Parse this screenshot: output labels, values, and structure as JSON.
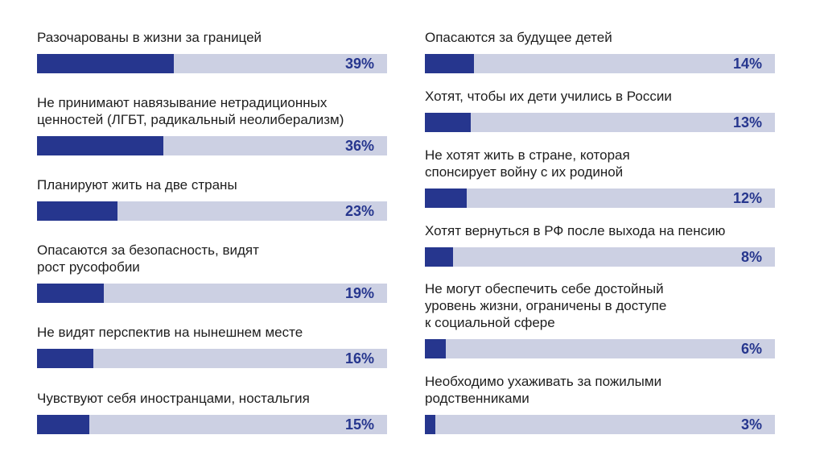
{
  "chart_data": {
    "type": "bar",
    "unit": "%",
    "xlim": [
      0,
      100
    ],
    "colors": {
      "fill": "#26368e",
      "track": "#ccd0e3",
      "value_text": "#26368e",
      "label_text": "#1e1e1e"
    },
    "categories": [
      "Разочарованы в жизни за границей",
      "Не принимают навязывание нетрадиционных\nценностей (ЛГБТ, радикальный неолиберализм)",
      "Планируют жить на две страны",
      "Опасаются за безопасность, видят\nрост русофобии",
      "Не видят перспектив на нынешнем месте",
      "Чувствуют себя иностранцами, ностальгия",
      "Опасаются за будущее детей",
      "Хотят, чтобы их дети учились в России",
      "Не хотят жить в стране, которая\nспонсирует войну с их родиной",
      "Хотят вернуться в РФ после выхода на пенсию",
      "Не могут обеспечить себе достойный\nуровень жизни, ограничены в доступе\nк социальной сфере",
      "Необходимо ухаживать за пожилыми\nродственниками"
    ],
    "values": [
      39,
      36,
      23,
      19,
      16,
      15,
      14,
      13,
      12,
      8,
      6,
      3
    ],
    "value_labels": [
      "39%",
      "36%",
      "23%",
      "19%",
      "16%",
      "15%",
      "14%",
      "13%",
      "12%",
      "8%",
      "6%",
      "3%"
    ]
  }
}
